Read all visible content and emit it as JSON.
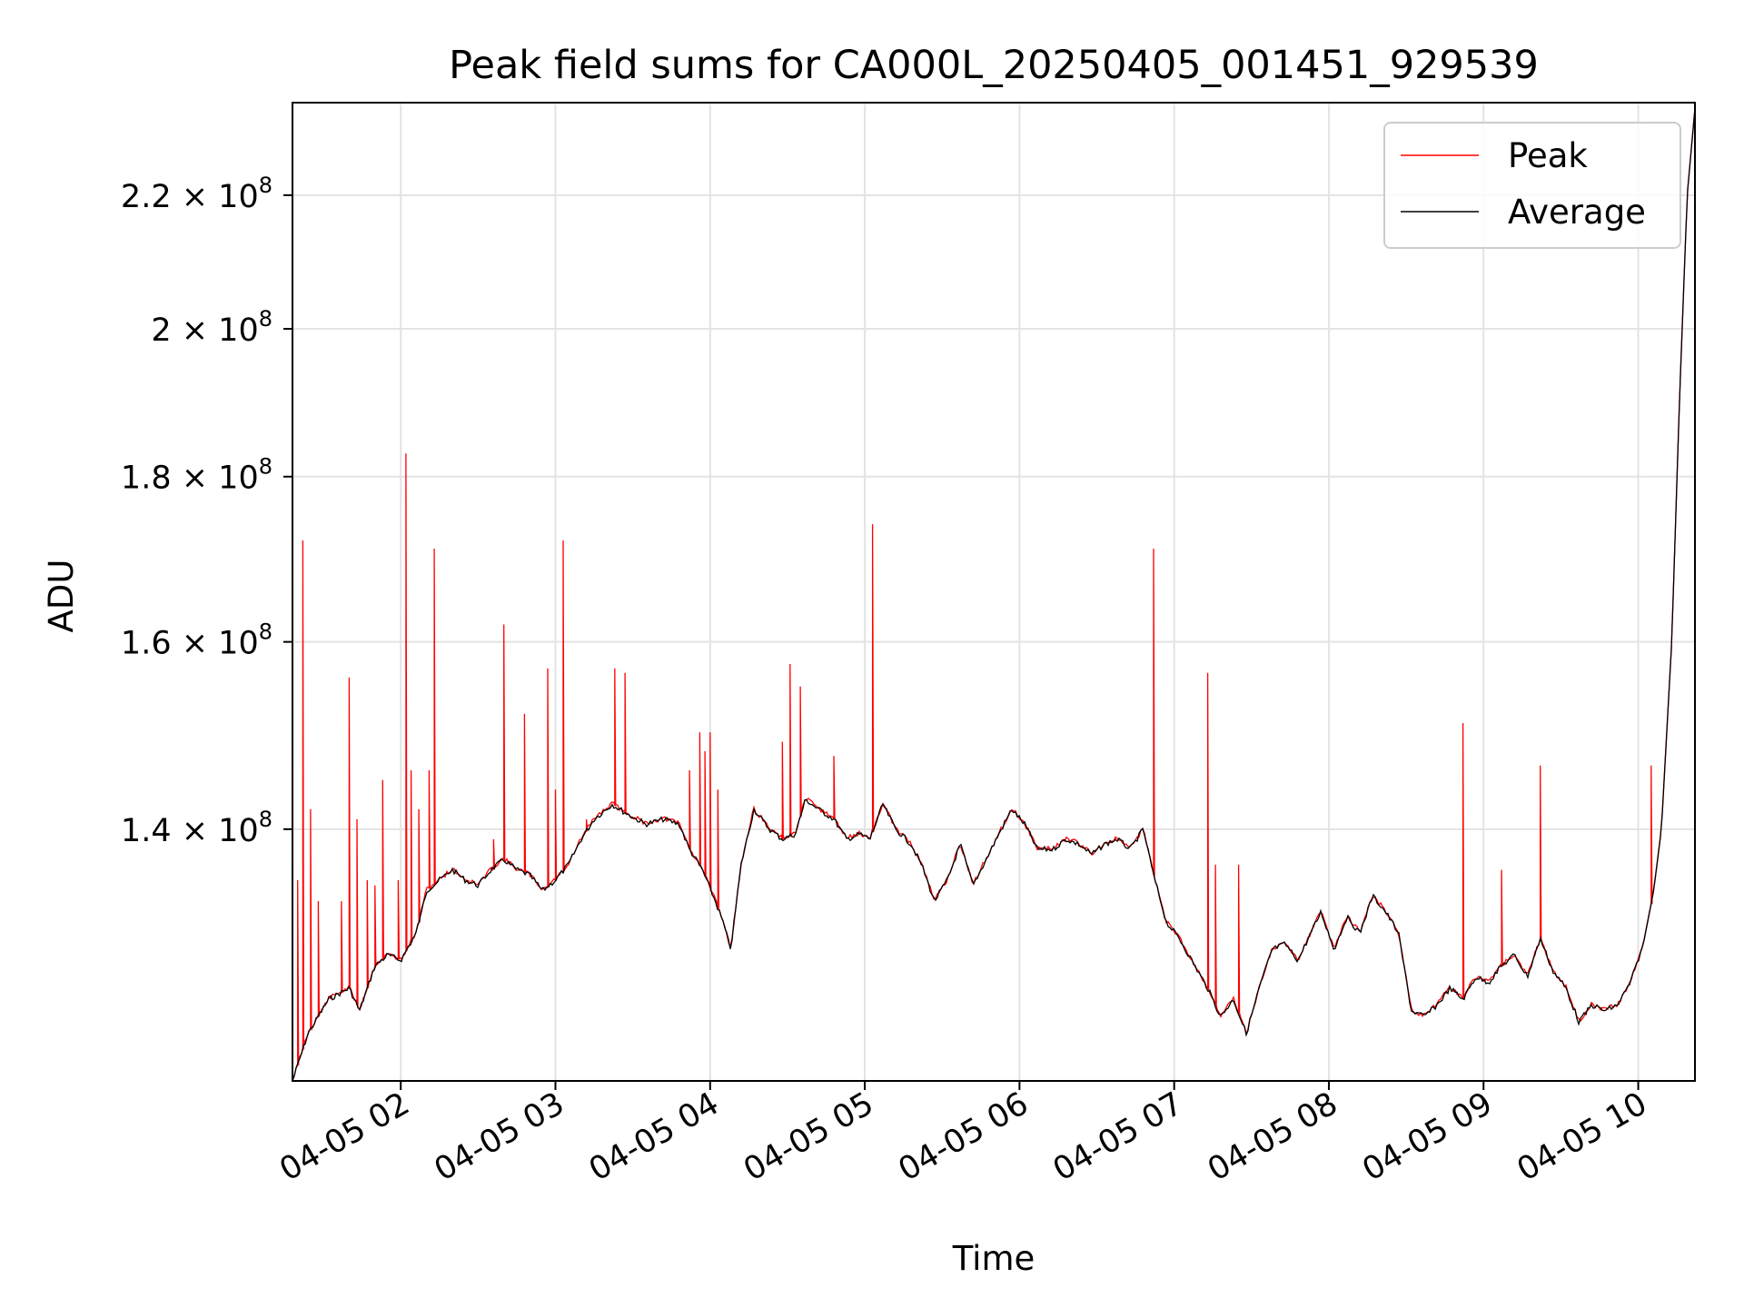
{
  "chart_data": {
    "type": "line",
    "title": "Peak field sums for CA000L_20250405_001451_929539",
    "xlabel": "Time",
    "ylabel": "ADU",
    "y_scale": "log",
    "grid": true,
    "legend_position": "top-right",
    "xlim": [
      "04-05 01:18",
      "04-05 10:22"
    ],
    "ylim": [
      117000000,
      235000000
    ],
    "x_ticks": [
      "04-05 02",
      "04-05 03",
      "04-05 04",
      "04-05 05",
      "04-05 06",
      "04-05 07",
      "04-05 08",
      "04-05 09",
      "04-05 10"
    ],
    "y_ticks": [
      {
        "value": 140000000,
        "mantissa": "1.4",
        "exponent": "8"
      },
      {
        "value": 160000000,
        "mantissa": "1.6",
        "exponent": "8"
      },
      {
        "value": 180000000,
        "mantissa": "1.8",
        "exponent": "8"
      },
      {
        "value": 200000000,
        "mantissa": "2",
        "exponent": "8"
      },
      {
        "value": 220000000,
        "mantissa": "2.2",
        "exponent": "8"
      }
    ],
    "baseline": [
      [
        "04-05 01:18",
        117000000
      ],
      [
        "04-05 01:24",
        121000000
      ],
      [
        "04-05 01:32",
        124000000
      ],
      [
        "04-05 01:40",
        125000000
      ],
      [
        "04-05 01:44",
        123000000
      ],
      [
        "04-05 01:50",
        127000000
      ],
      [
        "04-05 01:55",
        128000000
      ],
      [
        "04-05 02:00",
        127500000
      ],
      [
        "04-05 02:06",
        130000000
      ],
      [
        "04-05 02:10",
        134000000
      ],
      [
        "04-05 02:15",
        135000000
      ],
      [
        "04-05 02:20",
        136000000
      ],
      [
        "04-05 02:25",
        135000000
      ],
      [
        "04-05 02:30",
        134500000
      ],
      [
        "04-05 02:35",
        136000000
      ],
      [
        "04-05 02:40",
        137000000
      ],
      [
        "04-05 02:45",
        136000000
      ],
      [
        "04-05 02:50",
        135500000
      ],
      [
        "04-05 02:55",
        134000000
      ],
      [
        "04-05 03:00",
        135000000
      ],
      [
        "04-05 03:05",
        136500000
      ],
      [
        "04-05 03:10",
        139000000
      ],
      [
        "04-05 03:15",
        141000000
      ],
      [
        "04-05 03:22",
        142500000
      ],
      [
        "04-05 03:28",
        141500000
      ],
      [
        "04-05 03:35",
        140500000
      ],
      [
        "04-05 03:42",
        141000000
      ],
      [
        "04-05 03:48",
        140500000
      ],
      [
        "04-05 03:52",
        138000000
      ],
      [
        "04-05 03:57",
        136000000
      ],
      [
        "04-05 04:02",
        133000000
      ],
      [
        "04-05 04:05",
        131000000
      ],
      [
        "04-05 04:08",
        128500000
      ],
      [
        "04-05 04:12",
        136500000
      ],
      [
        "04-05 04:17",
        142000000
      ],
      [
        "04-05 04:23",
        140000000
      ],
      [
        "04-05 04:28",
        139000000
      ],
      [
        "04-05 04:33",
        139500000
      ],
      [
        "04-05 04:37",
        143000000
      ],
      [
        "04-05 04:42",
        142000000
      ],
      [
        "04-05 04:48",
        141000000
      ],
      [
        "04-05 04:53",
        139000000
      ],
      [
        "04-05 04:58",
        139500000
      ],
      [
        "04-05 05:02",
        139000000
      ],
      [
        "04-05 05:07",
        142500000
      ],
      [
        "04-05 05:12",
        140000000
      ],
      [
        "04-05 05:18",
        138500000
      ],
      [
        "04-05 05:22",
        136500000
      ],
      [
        "04-05 05:27",
        133000000
      ],
      [
        "04-05 05:32",
        135000000
      ],
      [
        "04-05 05:37",
        138500000
      ],
      [
        "04-05 05:42",
        134500000
      ],
      [
        "04-05 05:47",
        137000000
      ],
      [
        "04-05 05:52",
        139500000
      ],
      [
        "04-05 05:57",
        142000000
      ],
      [
        "04-05 06:02",
        140500000
      ],
      [
        "04-05 06:07",
        138000000
      ],
      [
        "04-05 06:13",
        138000000
      ],
      [
        "04-05 06:18",
        139000000
      ],
      [
        "04-05 06:23",
        138500000
      ],
      [
        "04-05 06:28",
        137500000
      ],
      [
        "04-05 06:33",
        138500000
      ],
      [
        "04-05 06:38",
        139000000
      ],
      [
        "04-05 06:43",
        138000000
      ],
      [
        "04-05 06:48",
        140000000
      ],
      [
        "04-05 06:52",
        135500000
      ],
      [
        "04-05 06:57",
        131000000
      ],
      [
        "04-05 07:02",
        129500000
      ],
      [
        "04-05 07:08",
        127000000
      ],
      [
        "04-05 07:13",
        125000000
      ],
      [
        "04-05 07:18",
        122500000
      ],
      [
        "04-05 07:23",
        124000000
      ],
      [
        "04-05 07:28",
        121000000
      ],
      [
        "04-05 07:33",
        125000000
      ],
      [
        "04-05 07:38",
        128500000
      ],
      [
        "04-05 07:43",
        129000000
      ],
      [
        "04-05 07:48",
        127500000
      ],
      [
        "04-05 07:53",
        130000000
      ],
      [
        "04-05 07:57",
        132000000
      ],
      [
        "04-05 08:02",
        128500000
      ],
      [
        "04-05 08:07",
        131500000
      ],
      [
        "04-05 08:12",
        130000000
      ],
      [
        "04-05 08:17",
        133500000
      ],
      [
        "04-05 08:22",
        132000000
      ],
      [
        "04-05 08:27",
        130000000
      ],
      [
        "04-05 08:32",
        123000000
      ],
      [
        "04-05 08:37",
        122500000
      ],
      [
        "04-05 08:42",
        123500000
      ],
      [
        "04-05 08:47",
        125000000
      ],
      [
        "04-05 08:52",
        124000000
      ],
      [
        "04-05 08:57",
        126000000
      ],
      [
        "04-05 09:02",
        125500000
      ],
      [
        "04-05 09:07",
        127000000
      ],
      [
        "04-05 09:12",
        128000000
      ],
      [
        "04-05 09:17",
        126000000
      ],
      [
        "04-05 09:22",
        129500000
      ],
      [
        "04-05 09:27",
        126500000
      ],
      [
        "04-05 09:32",
        125000000
      ],
      [
        "04-05 09:37",
        122000000
      ],
      [
        "04-05 09:42",
        123500000
      ],
      [
        "04-05 09:47",
        123000000
      ],
      [
        "04-05 09:52",
        123500000
      ],
      [
        "04-05 09:57",
        125500000
      ],
      [
        "04-05 10:02",
        129000000
      ],
      [
        "04-05 10:06",
        134000000
      ],
      [
        "04-05 10:09",
        140000000
      ],
      [
        "04-05 10:13",
        160000000
      ],
      [
        "04-05 10:16",
        190000000
      ],
      [
        "04-05 10:19",
        220000000
      ],
      [
        "04-05 10:22",
        234000000
      ]
    ],
    "peak_spikes": [
      [
        "04-05 01:20",
        135000000
      ],
      [
        "04-05 01:22",
        172000000
      ],
      [
        "04-05 01:25",
        142000000
      ],
      [
        "04-05 01:28",
        133000000
      ],
      [
        "04-05 01:37",
        133000000
      ],
      [
        "04-05 01:40",
        156000000
      ],
      [
        "04-05 01:43",
        141000000
      ],
      [
        "04-05 01:47",
        135000000
      ],
      [
        "04-05 01:50",
        134500000
      ],
      [
        "04-05 01:53",
        145000000
      ],
      [
        "04-05 01:59",
        135000000
      ],
      [
        "04-05 02:02",
        183000000
      ],
      [
        "04-05 02:04",
        146000000
      ],
      [
        "04-05 02:07",
        142000000
      ],
      [
        "04-05 02:11",
        146000000
      ],
      [
        "04-05 02:13",
        171000000
      ],
      [
        "04-05 02:36",
        139000000
      ],
      [
        "04-05 02:40",
        162000000
      ],
      [
        "04-05 02:48",
        152000000
      ],
      [
        "04-05 02:57",
        157000000
      ],
      [
        "04-05 03:00",
        144000000
      ],
      [
        "04-05 03:03",
        172000000
      ],
      [
        "04-05 03:12",
        141000000
      ],
      [
        "04-05 03:23",
        157000000
      ],
      [
        "04-05 03:27",
        156500000
      ],
      [
        "04-05 03:52",
        146000000
      ],
      [
        "04-05 03:56",
        150000000
      ],
      [
        "04-05 03:58",
        148000000
      ],
      [
        "04-05 04:00",
        150000000
      ],
      [
        "04-05 04:03",
        144000000
      ],
      [
        "04-05 04:28",
        149000000
      ],
      [
        "04-05 04:31",
        157500000
      ],
      [
        "04-05 04:35",
        155000000
      ],
      [
        "04-05 04:48",
        147500000
      ],
      [
        "04-05 05:03",
        174000000
      ],
      [
        "04-05 06:52",
        171000000
      ],
      [
        "04-05 07:13",
        156500000
      ],
      [
        "04-05 07:16",
        136500000
      ],
      [
        "04-05 07:25",
        136500000
      ],
      [
        "04-05 08:52",
        151000000
      ],
      [
        "04-05 09:07",
        136000000
      ],
      [
        "04-05 09:22",
        146500000
      ],
      [
        "04-05 10:05",
        146500000
      ]
    ],
    "series": [
      {
        "name": "Peak",
        "color": "#ff0000"
      },
      {
        "name": "Average",
        "color": "#000000"
      }
    ]
  }
}
